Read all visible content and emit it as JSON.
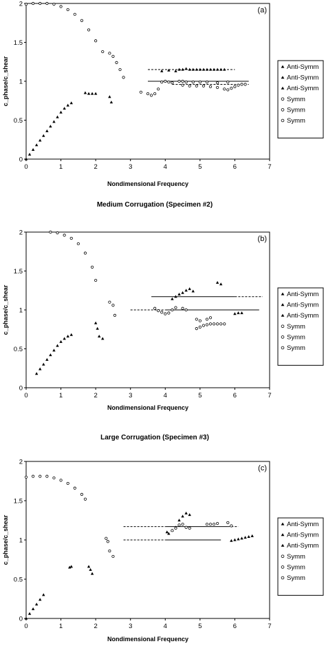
{
  "chart_data": [
    {
      "type": "scatter",
      "title": "",
      "panel_label": "(a)",
      "xlabel": "Nondimensional Frequency",
      "ylabel": "c_phase/c_shear",
      "xlim": [
        0,
        7
      ],
      "ylim": [
        0,
        2
      ],
      "xticks": [
        "0",
        "1",
        "2",
        "3",
        "4",
        "5",
        "6",
        "7"
      ],
      "yticks": [
        "0",
        "0.5",
        "1",
        "1.5",
        "2"
      ],
      "grid": false,
      "legend_position": "right",
      "series": [
        {
          "name": "Anti-Symm",
          "marker": "triangle",
          "points": [
            [
              0.0,
              0.0
            ],
            [
              0.1,
              0.06
            ],
            [
              0.2,
              0.12
            ],
            [
              0.3,
              0.18
            ],
            [
              0.4,
              0.24
            ],
            [
              0.5,
              0.3
            ],
            [
              0.6,
              0.36
            ],
            [
              0.7,
              0.42
            ],
            [
              0.8,
              0.48
            ],
            [
              0.9,
              0.54
            ],
            [
              1.0,
              0.6
            ],
            [
              1.1,
              0.65
            ],
            [
              1.2,
              0.69
            ],
            [
              1.3,
              0.72
            ]
          ]
        },
        {
          "name": "Anti-Symm",
          "marker": "triangle",
          "points": [
            [
              1.7,
              0.85
            ],
            [
              1.8,
              0.84
            ],
            [
              1.9,
              0.84
            ],
            [
              2.0,
              0.84
            ],
            [
              2.4,
              0.8
            ],
            [
              2.45,
              0.73
            ]
          ]
        },
        {
          "name": "Anti-Symm",
          "marker": "triangle",
          "points": [
            [
              3.9,
              1.13
            ],
            [
              4.1,
              1.14
            ],
            [
              4.3,
              1.13
            ],
            [
              4.4,
              1.15
            ],
            [
              4.5,
              1.15
            ],
            [
              4.6,
              1.16
            ],
            [
              4.7,
              1.15
            ],
            [
              4.8,
              1.15
            ],
            [
              4.9,
              1.15
            ],
            [
              5.0,
              1.15
            ],
            [
              5.1,
              1.15
            ],
            [
              5.2,
              1.15
            ],
            [
              5.3,
              1.15
            ],
            [
              5.4,
              1.15
            ],
            [
              5.5,
              1.15
            ],
            [
              5.6,
              1.15
            ],
            [
              5.7,
              1.15
            ]
          ]
        },
        {
          "name": "Symm",
          "marker": "circle",
          "points": [
            [
              0.0,
              1.99
            ],
            [
              0.2,
              2.0
            ],
            [
              0.4,
              2.0
            ],
            [
              0.6,
              2.0
            ],
            [
              0.8,
              1.99
            ],
            [
              1.0,
              1.96
            ],
            [
              1.2,
              1.92
            ],
            [
              1.4,
              1.86
            ],
            [
              1.6,
              1.78
            ],
            [
              1.8,
              1.66
            ],
            [
              2.0,
              1.52
            ],
            [
              2.2,
              1.38
            ],
            [
              2.4,
              1.36
            ],
            [
              2.5,
              1.32
            ],
            [
              2.6,
              1.24
            ],
            [
              2.7,
              1.15
            ],
            [
              2.8,
              1.05
            ]
          ]
        },
        {
          "name": "Symm",
          "marker": "circle",
          "points": [
            [
              3.3,
              0.86
            ],
            [
              3.5,
              0.84
            ],
            [
              3.6,
              0.82
            ],
            [
              3.7,
              0.84
            ],
            [
              3.8,
              0.9
            ],
            [
              3.9,
              0.99
            ],
            [
              4.0,
              1.0
            ],
            [
              4.1,
              0.99
            ],
            [
              4.2,
              0.98
            ],
            [
              4.4,
              1.0
            ],
            [
              4.5,
              1.0
            ],
            [
              4.6,
              0.99
            ],
            [
              4.8,
              0.99
            ],
            [
              5.0,
              0.99
            ],
            [
              5.2,
              0.99
            ],
            [
              5.5,
              0.98
            ],
            [
              5.8,
              0.99
            ]
          ]
        },
        {
          "name": "Symm",
          "marker": "circle",
          "points": [
            [
              4.5,
              0.95
            ],
            [
              4.7,
              0.94
            ],
            [
              4.9,
              0.94
            ],
            [
              5.1,
              0.94
            ],
            [
              5.3,
              0.93
            ],
            [
              5.5,
              0.92
            ],
            [
              5.7,
              0.9
            ],
            [
              5.8,
              0.89
            ],
            [
              5.9,
              0.91
            ],
            [
              6.0,
              0.93
            ],
            [
              6.1,
              0.95
            ],
            [
              6.2,
              0.96
            ],
            [
              6.3,
              0.96
            ]
          ]
        }
      ],
      "reference_lines": [
        {
          "y": 1.15,
          "x": [
            3.5,
            6.0
          ],
          "style": "dashed"
        },
        {
          "y": 1.0,
          "x": [
            3.5,
            6.4
          ],
          "style": "solid"
        },
        {
          "y": 0.96,
          "x": [
            4.2,
            6.4
          ],
          "style": "dashed"
        }
      ]
    },
    {
      "type": "scatter",
      "title": "Medium Corrugation (Specimen #2)",
      "panel_label": "(b)",
      "xlabel": "Nondimensional Frequency",
      "ylabel": "c_phase/c_shear",
      "xlim": [
        0,
        7
      ],
      "ylim": [
        0,
        2
      ],
      "xticks": [
        "0",
        "1",
        "2",
        "3",
        "4",
        "5",
        "6",
        "7"
      ],
      "yticks": [
        "0",
        "0.5",
        "1",
        "1.5",
        "2"
      ],
      "grid": false,
      "legend_position": "right",
      "series": [
        {
          "name": "Anti-Symm",
          "marker": "triangle",
          "points": [
            [
              0.3,
              0.18
            ],
            [
              0.4,
              0.24
            ],
            [
              0.5,
              0.3
            ],
            [
              0.6,
              0.36
            ],
            [
              0.7,
              0.42
            ],
            [
              0.8,
              0.48
            ],
            [
              0.9,
              0.54
            ],
            [
              1.0,
              0.59
            ],
            [
              1.1,
              0.63
            ],
            [
              1.2,
              0.66
            ],
            [
              1.3,
              0.68
            ]
          ]
        },
        {
          "name": "Anti-Symm",
          "marker": "triangle",
          "points": [
            [
              2.0,
              0.83
            ],
            [
              2.05,
              0.76
            ],
            [
              2.1,
              0.66
            ],
            [
              2.2,
              0.63
            ]
          ]
        },
        {
          "name": "Anti-Symm",
          "marker": "triangle",
          "points": [
            [
              4.2,
              1.14
            ],
            [
              4.3,
              1.17
            ],
            [
              4.4,
              1.2
            ],
            [
              4.5,
              1.22
            ],
            [
              4.6,
              1.25
            ],
            [
              4.7,
              1.27
            ],
            [
              4.8,
              1.24
            ],
            [
              5.5,
              1.35
            ],
            [
              5.6,
              1.33
            ],
            [
              6.0,
              0.95
            ],
            [
              6.1,
              0.96
            ],
            [
              6.2,
              0.96
            ]
          ]
        },
        {
          "name": "Symm",
          "marker": "circle",
          "points": [
            [
              0.7,
              2.0
            ],
            [
              0.9,
              1.99
            ],
            [
              1.1,
              1.96
            ],
            [
              1.3,
              1.92
            ],
            [
              1.5,
              1.85
            ],
            [
              1.7,
              1.73
            ],
            [
              1.9,
              1.55
            ],
            [
              2.0,
              1.38
            ],
            [
              2.4,
              1.1
            ],
            [
              2.5,
              1.06
            ],
            [
              2.55,
              0.93
            ]
          ]
        },
        {
          "name": "Symm",
          "marker": "circle",
          "points": [
            [
              3.7,
              1.02
            ],
            [
              3.8,
              0.99
            ],
            [
              3.9,
              0.97
            ],
            [
              4.0,
              0.95
            ],
            [
              4.1,
              0.96
            ],
            [
              4.2,
              1.0
            ],
            [
              4.3,
              1.03
            ],
            [
              4.5,
              1.02
            ],
            [
              4.6,
              1.0
            ],
            [
              4.9,
              0.88
            ],
            [
              5.0,
              0.86
            ],
            [
              5.2,
              0.88
            ],
            [
              5.3,
              0.9
            ]
          ]
        },
        {
          "name": "Symm",
          "marker": "circle",
          "points": [
            [
              4.9,
              0.76
            ],
            [
              5.0,
              0.78
            ],
            [
              5.1,
              0.8
            ],
            [
              5.2,
              0.81
            ],
            [
              5.3,
              0.82
            ],
            [
              5.4,
              0.82
            ],
            [
              5.5,
              0.82
            ],
            [
              5.6,
              0.82
            ],
            [
              5.7,
              0.82
            ]
          ]
        }
      ],
      "reference_lines": [
        {
          "y": 1.17,
          "x": [
            3.6,
            6.0
          ],
          "style": "solid"
        },
        {
          "y": 1.17,
          "x": [
            6.0,
            6.8
          ],
          "style": "dashed"
        },
        {
          "y": 1.0,
          "x": [
            3.0,
            4.0
          ],
          "style": "dashed"
        },
        {
          "y": 1.0,
          "x": [
            4.0,
            6.7
          ],
          "style": "solid"
        }
      ]
    },
    {
      "type": "scatter",
      "title": "Large Corrugation (Specimen #3)",
      "panel_label": "(c)",
      "xlabel": "Nondimensional Frequency",
      "ylabel": "c_phase/c_shear",
      "xlim": [
        0,
        7
      ],
      "ylim": [
        0,
        2
      ],
      "xticks": [
        "0",
        "1",
        "2",
        "3",
        "4",
        "5",
        "6",
        "7"
      ],
      "yticks": [
        "0",
        "0.5",
        "1",
        "1.5",
        "2"
      ],
      "grid": false,
      "legend_position": "right",
      "series": [
        {
          "name": "Anti-Symm",
          "marker": "triangle",
          "points": [
            [
              0.0,
              0.0
            ],
            [
              0.1,
              0.06
            ],
            [
              0.2,
              0.12
            ],
            [
              0.3,
              0.18
            ],
            [
              0.4,
              0.24
            ],
            [
              0.5,
              0.3
            ]
          ]
        },
        {
          "name": "Anti-Symm",
          "marker": "triangle",
          "points": [
            [
              1.25,
              0.65
            ],
            [
              1.3,
              0.66
            ],
            [
              1.8,
              0.66
            ],
            [
              1.85,
              0.62
            ],
            [
              1.9,
              0.57
            ]
          ]
        },
        {
          "name": "Anti-Symm",
          "marker": "triangle",
          "points": [
            [
              4.05,
              1.1
            ],
            [
              4.1,
              1.08
            ],
            [
              4.2,
              1.12
            ],
            [
              4.3,
              1.16
            ],
            [
              4.4,
              1.25
            ],
            [
              4.5,
              1.3
            ],
            [
              4.6,
              1.34
            ],
            [
              4.7,
              1.32
            ],
            [
              5.9,
              0.99
            ],
            [
              6.0,
              1.0
            ],
            [
              6.1,
              1.01
            ],
            [
              6.2,
              1.02
            ],
            [
              6.3,
              1.03
            ],
            [
              6.4,
              1.04
            ],
            [
              6.5,
              1.05
            ]
          ]
        },
        {
          "name": "Symm",
          "marker": "circle",
          "points": [
            [
              0.0,
              1.8
            ],
            [
              0.2,
              1.81
            ],
            [
              0.4,
              1.81
            ],
            [
              0.6,
              1.81
            ],
            [
              0.8,
              1.79
            ],
            [
              1.0,
              1.76
            ],
            [
              1.2,
              1.72
            ],
            [
              1.4,
              1.66
            ],
            [
              1.6,
              1.58
            ],
            [
              1.7,
              1.52
            ]
          ]
        },
        {
          "name": "Symm",
          "marker": "circle",
          "points": [
            [
              2.3,
              1.02
            ],
            [
              2.35,
              0.98
            ],
            [
              2.4,
              0.86
            ],
            [
              2.5,
              0.79
            ]
          ]
        },
        {
          "name": "Symm",
          "marker": "circle",
          "points": [
            [
              4.2,
              1.12
            ],
            [
              4.3,
              1.15
            ],
            [
              4.4,
              1.19
            ],
            [
              4.5,
              1.2
            ],
            [
              4.6,
              1.16
            ],
            [
              4.7,
              1.15
            ],
            [
              5.2,
              1.2
            ],
            [
              5.3,
              1.2
            ],
            [
              5.4,
              1.2
            ],
            [
              5.5,
              1.21
            ],
            [
              5.8,
              1.22
            ],
            [
              5.9,
              1.18
            ]
          ]
        }
      ],
      "reference_lines": [
        {
          "y": 1.17,
          "x": [
            2.8,
            4.0
          ],
          "style": "dashed"
        },
        {
          "y": 1.17,
          "x": [
            4.0,
            5.8
          ],
          "style": "solid"
        },
        {
          "y": 1.17,
          "x": [
            5.8,
            6.1
          ],
          "style": "dashed"
        },
        {
          "y": 1.0,
          "x": [
            2.8,
            4.0
          ],
          "style": "dashed"
        },
        {
          "y": 1.0,
          "x": [
            4.0,
            5.6
          ],
          "style": "solid"
        }
      ]
    }
  ]
}
